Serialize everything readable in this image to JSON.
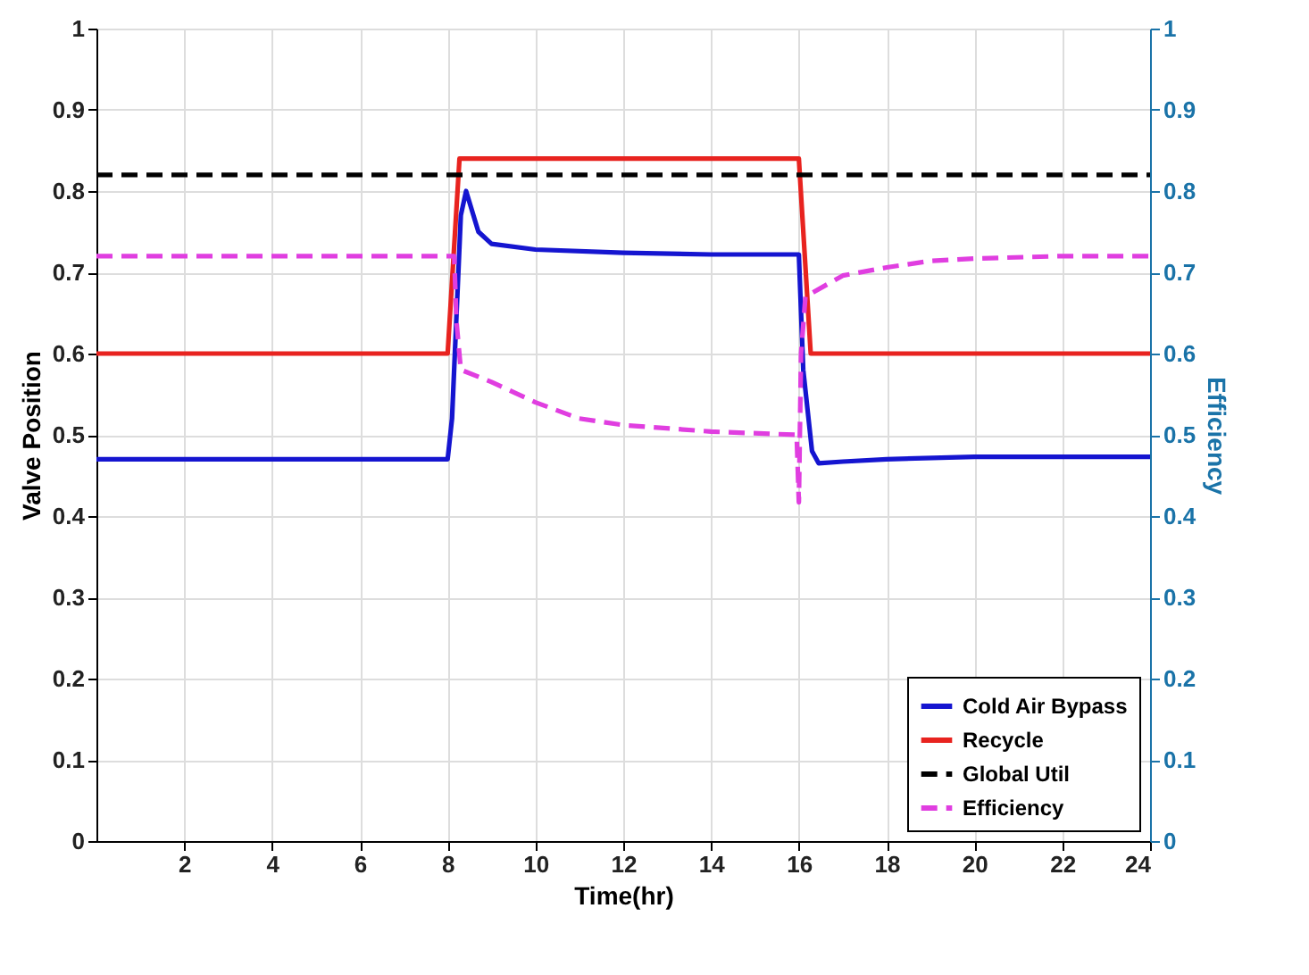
{
  "chart_data": {
    "type": "line",
    "xlabel": "Time(hr)",
    "ylabel": "Valve Position",
    "y2label": "Efficiency",
    "xlim": [
      0,
      24
    ],
    "xticks": [
      2,
      4,
      6,
      8,
      10,
      12,
      14,
      16,
      18,
      20,
      22,
      24
    ],
    "ylim": [
      0,
      1
    ],
    "yticks": [
      0,
      0.1,
      0.2,
      0.3,
      0.4,
      0.5,
      0.6,
      0.7,
      0.8,
      0.9,
      1
    ],
    "y2lim": [
      0,
      1
    ],
    "y2ticks": [
      0,
      0.1,
      0.2,
      0.3,
      0.4,
      0.5,
      0.6,
      0.7,
      0.8,
      0.9,
      1
    ],
    "grid": true,
    "legend": "bottom right",
    "series": [
      {
        "name": "Cold Air Bypass",
        "color": "#1515d0",
        "line_style": "solid",
        "x": [
          0,
          8,
          8.1,
          8.3,
          8.42,
          8.7,
          9,
          10,
          12,
          14,
          16,
          16.1,
          16.3,
          16.45,
          17,
          18,
          20,
          24
        ],
        "values": [
          0.47,
          0.47,
          0.52,
          0.77,
          0.8,
          0.75,
          0.735,
          0.728,
          0.724,
          0.722,
          0.722,
          0.58,
          0.48,
          0.465,
          0.467,
          0.47,
          0.473,
          0.473
        ]
      },
      {
        "name": "Recycle",
        "color": "#e8231f",
        "line_style": "solid",
        "x": [
          0,
          8,
          8.27,
          16,
          16.27,
          24
        ],
        "values": [
          0.6,
          0.6,
          0.84,
          0.84,
          0.6,
          0.6
        ]
      },
      {
        "name": "Global Util",
        "color": "#000000",
        "line_style": "dashed",
        "x": [
          0,
          24
        ],
        "values": [
          0.82,
          0.82
        ]
      },
      {
        "name": "Efficiency",
        "color": "#e03ee0",
        "line_style": "dashed",
        "axis": "y2",
        "x": [
          0,
          8.15,
          8.2,
          8.3,
          9,
          10,
          11,
          12,
          14,
          15.95,
          16,
          16.05,
          16.15,
          17,
          18,
          19,
          20,
          22,
          24
        ],
        "values": [
          0.72,
          0.72,
          0.64,
          0.58,
          0.565,
          0.54,
          0.52,
          0.512,
          0.504,
          0.5,
          0.417,
          0.6,
          0.67,
          0.696,
          0.706,
          0.714,
          0.717,
          0.72,
          0.72
        ]
      }
    ]
  }
}
